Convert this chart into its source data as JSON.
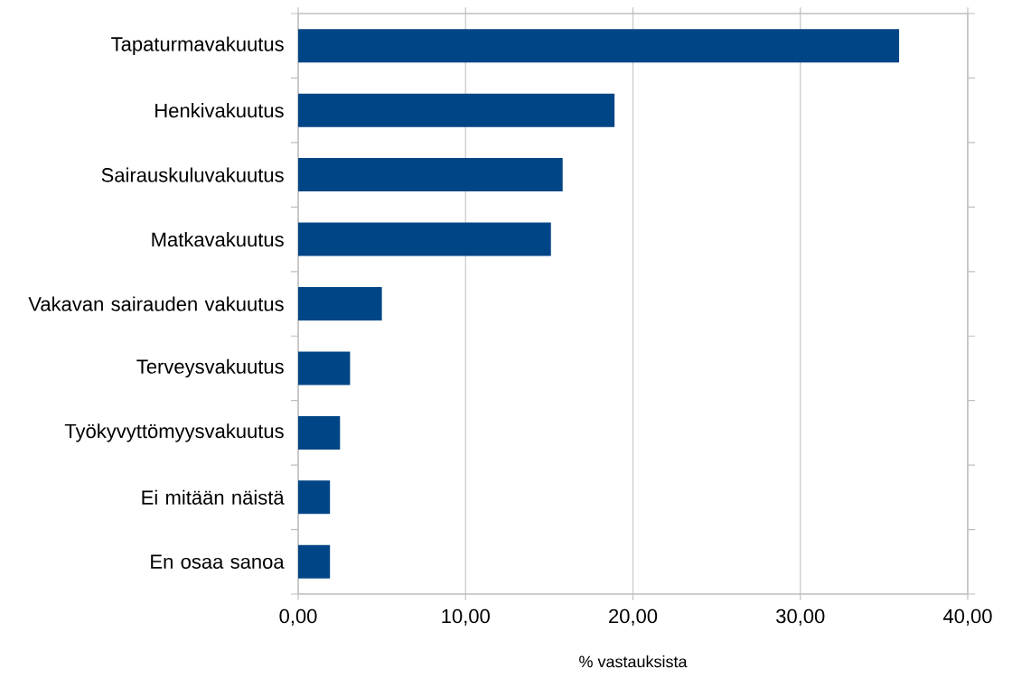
{
  "chart_data": {
    "type": "bar",
    "orientation": "horizontal",
    "xlabel": "% vastauksista",
    "categories": [
      "Tapaturmavakuutus",
      "Henkivakuutus",
      "Sairauskuluvakuutus",
      "Matkavakuutus",
      "Vakavan sairauden vakuutus",
      "Terveysvakuutus",
      "Työkyvyttömyysvakuutus",
      "Ei mitään näistä",
      "En osaa sanoa"
    ],
    "values": [
      35.9,
      18.9,
      15.8,
      15.1,
      5.0,
      3.1,
      2.5,
      1.9,
      1.9
    ],
    "color": "#004586",
    "xlim": [
      0,
      40
    ],
    "xticks": [
      {
        "value": 0,
        "label": "0,00"
      },
      {
        "value": 10,
        "label": "10,00"
      },
      {
        "value": 20,
        "label": "20,00"
      },
      {
        "value": 30,
        "label": "30,00"
      },
      {
        "value": 40,
        "label": "40,00"
      }
    ],
    "grid": "x"
  }
}
